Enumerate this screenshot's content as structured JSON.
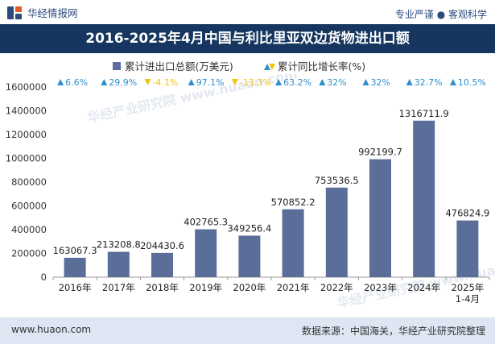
{
  "brand": {
    "name": "华经情报网",
    "tagline": "专业严谨 ● 客观科学"
  },
  "title": "2016-2025年4月中国与利比里亚双边货物进出口额",
  "legend": {
    "bar_label": "累计进出口总额(万美元)",
    "growth_label": "累计同比增长率(%)"
  },
  "footer": {
    "url": "www.huaon.com",
    "source": "数据来源：中国海关，华经产业研究院整理"
  },
  "watermark": "华经产业研究院 www.huaon.com",
  "colors": {
    "bar": "#5a6e99",
    "up": "#2f8fce",
    "down": "#f1c40f",
    "title_bg": "#16365f",
    "footer_bg": "#dde6f2"
  },
  "chart_data": {
    "type": "bar",
    "categories": [
      "2016年",
      "2017年",
      "2018年",
      "2019年",
      "2020年",
      "2021年",
      "2022年",
      "2023年",
      "2024年",
      "2025年\n1-4月"
    ],
    "series": [
      {
        "name": "累计进出口总额(万美元)",
        "values": [
          163067.3,
          213208.8,
          204430.6,
          402765.3,
          349256.4,
          570852.2,
          753536.5,
          992199.7,
          1316711.9,
          476824.9
        ],
        "labels": [
          "163067.3",
          "213208.8",
          "204430.6",
          "402765.3",
          "349256.4",
          "570852.2",
          "753536.5",
          "992199.7",
          "1316711.9",
          "476824.9"
        ]
      },
      {
        "name": "累计同比增长率(%)",
        "values": [
          6.6,
          29.9,
          -4.1,
          97.1,
          -13.3,
          63.2,
          32,
          32,
          32.7,
          10.5
        ],
        "labels": [
          "6.6%",
          "29.9%",
          "-4.1%",
          "97.1%",
          "-13.3%",
          "63.2%",
          "32%",
          "32%",
          "32.7%",
          "10.5%"
        ]
      }
    ],
    "ylim": [
      0,
      1600000
    ],
    "yticks": [
      "0",
      "200000",
      "400000",
      "600000",
      "800000",
      "1000000",
      "1200000",
      "1400000",
      "1600000"
    ],
    "grid": false
  }
}
